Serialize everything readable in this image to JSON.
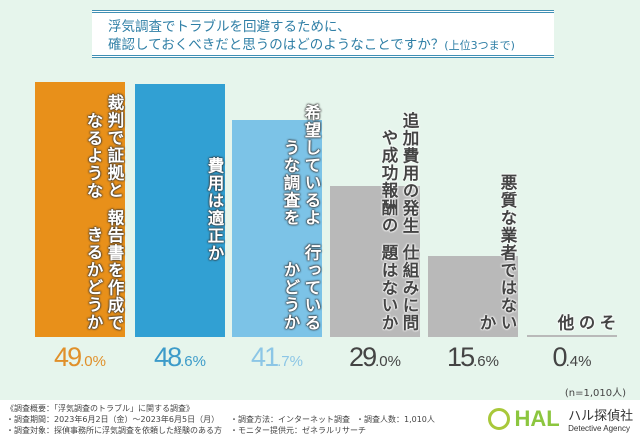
{
  "title": {
    "line1": "浮気調査でトラブルを回避するために、",
    "line2": "確認しておくべきだと思うのはどのようなことですか？",
    "note": "(上位3つまで)"
  },
  "chart_data": {
    "type": "bar",
    "categories": [
      [
        "裁判で証拠となるような",
        "報告書を作成できるかどうか"
      ],
      [
        "費用は適正か"
      ],
      [
        "希望しているような調査を",
        "行っているかどうか"
      ],
      [
        "追加費用の発生や成功報酬の",
        "仕組みに問題はないか"
      ],
      [
        "悪質な業者ではないか"
      ],
      [
        "その他"
      ]
    ],
    "values": [
      49.0,
      48.6,
      41.7,
      29.0,
      15.6,
      0.4
    ],
    "value_labels": [
      [
        "49",
        ".0%"
      ],
      [
        "48",
        ".6%"
      ],
      [
        "41",
        ".7%"
      ],
      [
        "29",
        ".0%"
      ],
      [
        "15",
        ".6%"
      ],
      [
        "0",
        ".4%"
      ]
    ],
    "colors": [
      "#e8901a",
      "#31a0d3",
      "#7cc3e7",
      "#b9b9b9",
      "#b9b9b9",
      "#b9b9b9"
    ],
    "value_colors": [
      "#e0902a",
      "#3c9bc9",
      "#8cc6e6",
      "#444444",
      "#444444",
      "#444444"
    ],
    "ylim": [
      0,
      50
    ]
  },
  "sample": "(n=1,010人)",
  "footer": {
    "heading": "《調査概要：「浮気調査のトラブル」に関する調査》",
    "period": "・調査期間：2023年6月2日（金）～2023年6月5日（月）",
    "target": "・調査対象：探偵事務所に浮気調査を依頼した経験のある方",
    "method": "・調査方法：インターネット調査",
    "provider": "・モニター提供元：ゼネラルリサーチ",
    "count": "・調査人数：1,010人"
  },
  "logo": {
    "mark": "HAL",
    "name": "ハル探偵社",
    "sub": "Detective Agency"
  }
}
